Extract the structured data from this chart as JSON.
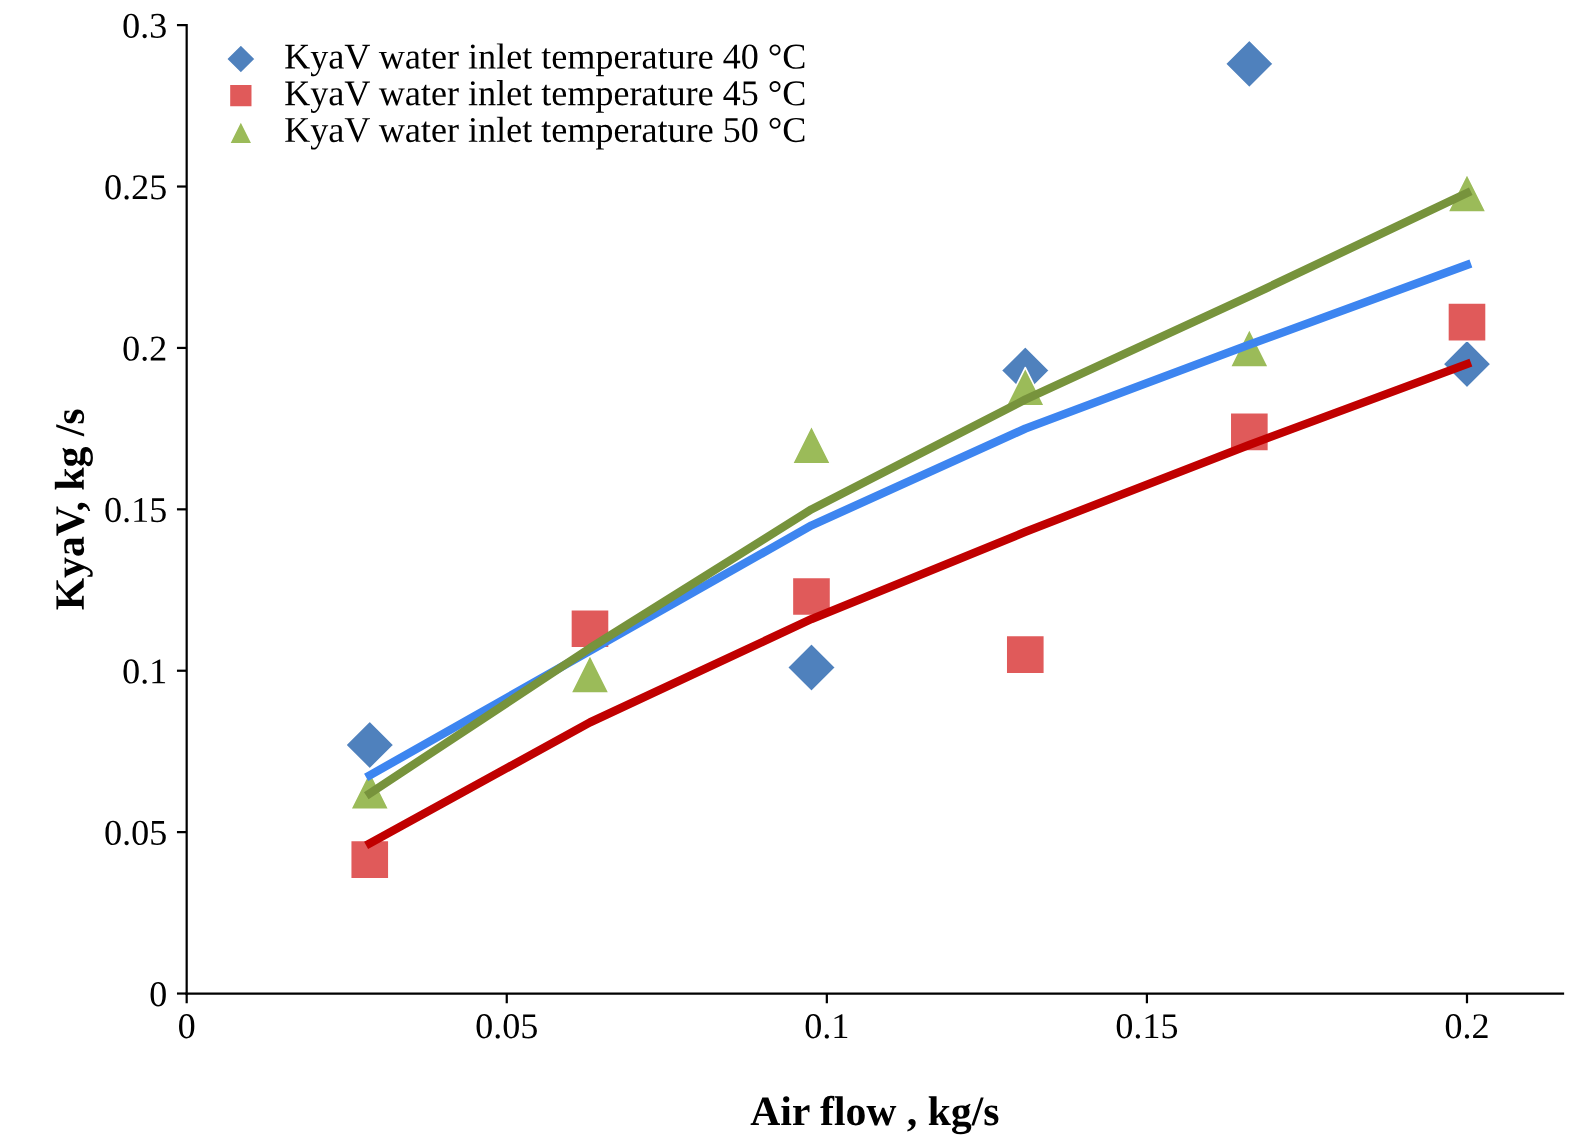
{
  "chart_data": {
    "type": "scatter",
    "xlabel": "Air flow , kg/s",
    "ylabel": "KyaV, kg /s",
    "xlim": [
      0,
      0.215
    ],
    "ylim": [
      0,
      0.3
    ],
    "xticks": [
      0,
      0.05,
      0.1,
      0.15,
      0.2
    ],
    "yticks": [
      0,
      0.05,
      0.1,
      0.15,
      0.2,
      0.25,
      0.3
    ],
    "grid": false,
    "legend": "top left",
    "series": [
      {
        "name": "KyaV water inlet temperature 40 °C",
        "marker": "diamond",
        "color": "#4f81bd",
        "x": [
          0.0286,
          0.063,
          0.0976,
          0.131,
          0.166,
          0.2
        ],
        "values": [
          0.077,
          null,
          0.101,
          0.193,
          0.288,
          0.195
        ]
      },
      {
        "name": "KyaV water inlet temperature 45 °C",
        "marker": "square",
        "color": "#e05a5a",
        "x": [
          0.0286,
          0.063,
          0.0976,
          0.131,
          0.166,
          0.2
        ],
        "values": [
          0.0415,
          0.113,
          0.123,
          0.105,
          0.174,
          0.208
        ]
      },
      {
        "name": "KyaV water inlet temperature 50 °C",
        "marker": "triangle",
        "color": "#9bbb59",
        "x": [
          0.0286,
          0.063,
          0.0976,
          0.131,
          0.166,
          0.2
        ],
        "values": [
          0.063,
          0.099,
          0.17,
          0.188,
          0.2,
          0.248
        ]
      },
      {
        "type": "line",
        "marker": "none",
        "color": "#3d85f0",
        "x": [
          0.0286,
          0.063,
          0.0976,
          0.131,
          0.166,
          0.2
        ],
        "values": [
          0.0676,
          null,
          0.145,
          0.175,
          0.201,
          0.2257
        ]
      },
      {
        "type": "line",
        "marker": "none",
        "color": "#c00000",
        "x": [
          0.0286,
          0.063,
          0.0976,
          0.131,
          0.166,
          0.2
        ],
        "values": [
          0.0465,
          0.084,
          0.116,
          0.143,
          0.17,
          0.195
        ]
      },
      {
        "type": "line",
        "marker": "none",
        "color": "#77933c",
        "x": [
          0.0286,
          0.063,
          0.0976,
          0.131,
          0.166,
          0.2
        ],
        "values": [
          0.062,
          0.107,
          0.15,
          0.184,
          0.216,
          0.248
        ]
      }
    ]
  }
}
